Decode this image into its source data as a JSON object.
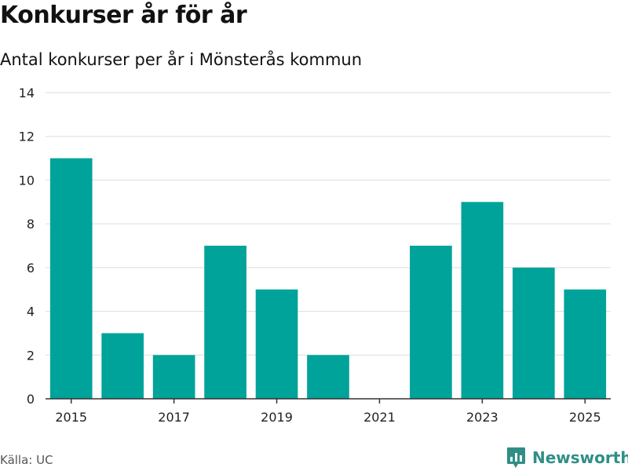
{
  "header": {
    "title": "Konkurser år för år",
    "subtitle": "Antal konkurser per år i Mönsterås kommun"
  },
  "footer": {
    "source": "Källa: UC",
    "brand": "Newsworthy"
  },
  "colors": {
    "bar": "#00a39a",
    "grid": "#dddddd",
    "axis": "#333333",
    "brand": "#2f8f87"
  },
  "chart_data": {
    "type": "bar",
    "title": "Konkurser år för år",
    "subtitle": "Antal konkurser per år i Mönsterås kommun",
    "xlabel": "",
    "ylabel": "",
    "categories": [
      2015,
      2016,
      2017,
      2018,
      2019,
      2020,
      2021,
      2022,
      2023,
      2024,
      2025
    ],
    "values": [
      11,
      3,
      2,
      7,
      5,
      2,
      0,
      7,
      9,
      6,
      5
    ],
    "x_tick_labels": [
      "2015",
      "2017",
      "2019",
      "2021",
      "2023",
      "2025"
    ],
    "ylim": [
      0,
      14
    ],
    "y_ticks": [
      0,
      2,
      4,
      6,
      8,
      10,
      12,
      14
    ],
    "grid": true,
    "legend": "none"
  }
}
